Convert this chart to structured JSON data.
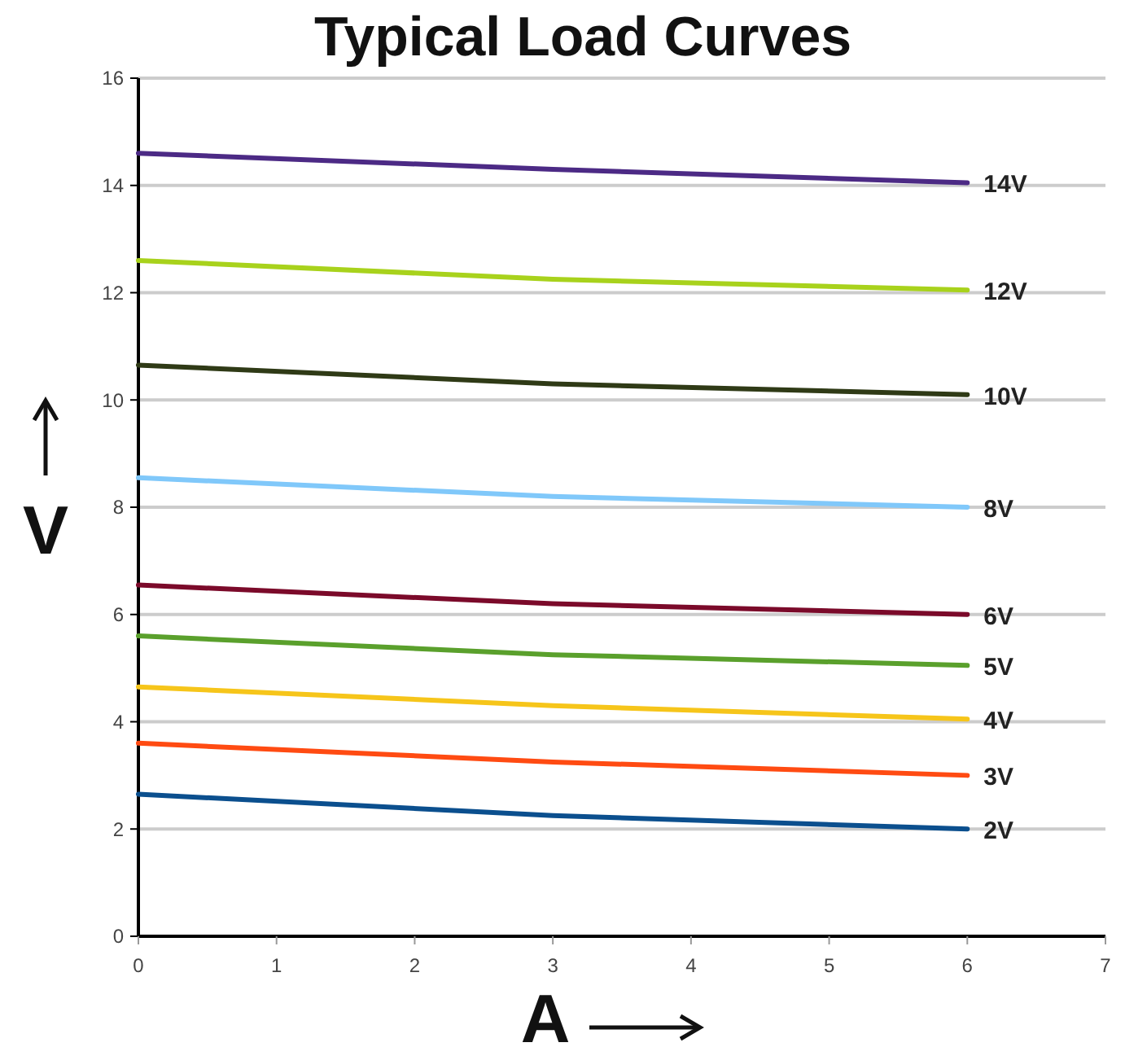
{
  "chart_data": {
    "type": "line",
    "title": "Typical Load Curves",
    "xlabel": "A",
    "ylabel": "V",
    "x": [
      0,
      3,
      6
    ],
    "xlim": [
      0,
      7
    ],
    "xticks": [
      0,
      1,
      2,
      3,
      4,
      5,
      6,
      7
    ],
    "ylim": [
      0,
      16
    ],
    "yticks": [
      0,
      2,
      4,
      6,
      8,
      10,
      12,
      14,
      16
    ],
    "grid": "y",
    "marker": "none",
    "line_style": "solid",
    "series": [
      {
        "name": "14V",
        "color": "#4c2a85",
        "values": [
          14.6,
          14.3,
          14.05
        ]
      },
      {
        "name": "12V",
        "color": "#a8d21c",
        "values": [
          12.6,
          12.25,
          12.05
        ]
      },
      {
        "name": "10V",
        "color": "#2f3a16",
        "values": [
          10.65,
          10.3,
          10.1
        ]
      },
      {
        "name": "8V",
        "color": "#80c8fa",
        "values": [
          8.55,
          8.2,
          8.0
        ]
      },
      {
        "name": "6V",
        "color": "#7b0a2a",
        "values": [
          6.55,
          6.2,
          6.0
        ]
      },
      {
        "name": "5V",
        "color": "#5aa02c",
        "values": [
          5.6,
          5.25,
          5.05
        ]
      },
      {
        "name": "4V",
        "color": "#f6c51a",
        "values": [
          4.65,
          4.3,
          4.05
        ]
      },
      {
        "name": "3V",
        "color": "#ff4b12",
        "values": [
          3.6,
          3.25,
          3.0
        ]
      },
      {
        "name": "2V",
        "color": "#0b4f8e",
        "values": [
          2.65,
          2.25,
          2.0
        ]
      }
    ]
  }
}
